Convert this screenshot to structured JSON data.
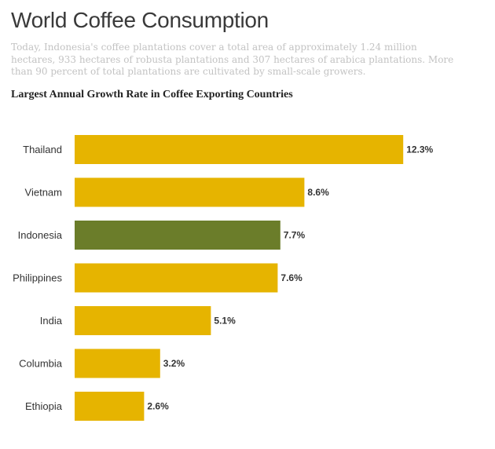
{
  "page": {
    "title": "World Coffee Consumption",
    "subtitle": "Today, Indonesia's coffee plantations cover a total area of approximately 1.24 million hectares, 933 hectares of robusta plantations and 307 hectares of arabica plantations. More than 90 percent of total plantations are cultivated by small-scale growers."
  },
  "chart_data": {
    "type": "bar",
    "orientation": "horizontal",
    "title": "Largest Annual Growth Rate in Coffee Exporting Countries",
    "categories": [
      "Thailand",
      "Vietnam",
      "Indonesia",
      "Philippines",
      "India",
      "Columbia",
      "Ethiopia"
    ],
    "values": [
      12.3,
      8.6,
      7.7,
      7.6,
      5.1,
      3.2,
      2.6
    ],
    "value_labels": [
      "12.3%",
      "8.6%",
      "7.7%",
      "7.6%",
      "5.1%",
      "3.2%",
      "2.6%"
    ],
    "colors": [
      "#e6b400",
      "#e6b400",
      "#6b7d2a",
      "#e6b400",
      "#e6b400",
      "#e6b400",
      "#e6b400"
    ],
    "grid": false,
    "legend": "none"
  }
}
